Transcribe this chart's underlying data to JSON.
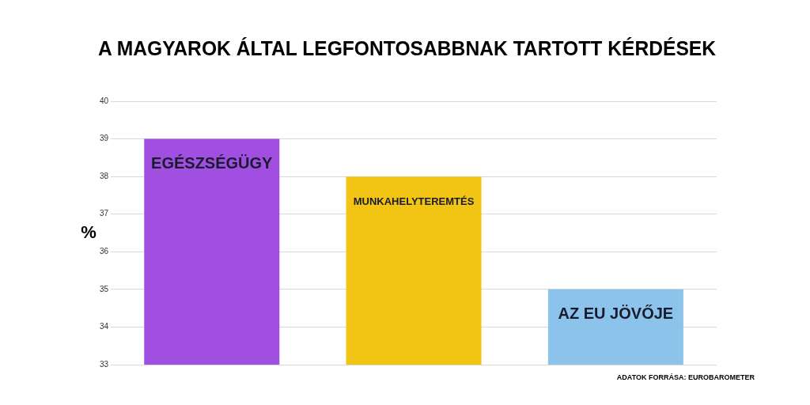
{
  "chart_data": {
    "type": "bar",
    "title": "A MAGYAROK ÁLTAL LEGFONTOSABBNAK TARTOTT KÉRDÉSEK",
    "ylabel": "%",
    "categories": [
      "EGÉSZSÉGÜGY",
      "MUNKAHELYTEREMTÉS",
      "AZ EU JÖVŐJE"
    ],
    "values": [
      39,
      38,
      35
    ],
    "colors": [
      "#a04fe0",
      "#f2c414",
      "#8cc3ea"
    ],
    "ylim": [
      33,
      40
    ],
    "yticks": [
      33,
      34,
      35,
      36,
      37,
      38,
      39,
      40
    ],
    "grid": "y",
    "legend": false,
    "annotations": [
      "ADATOK FORRÁSA: EUROBAROMETER"
    ]
  }
}
